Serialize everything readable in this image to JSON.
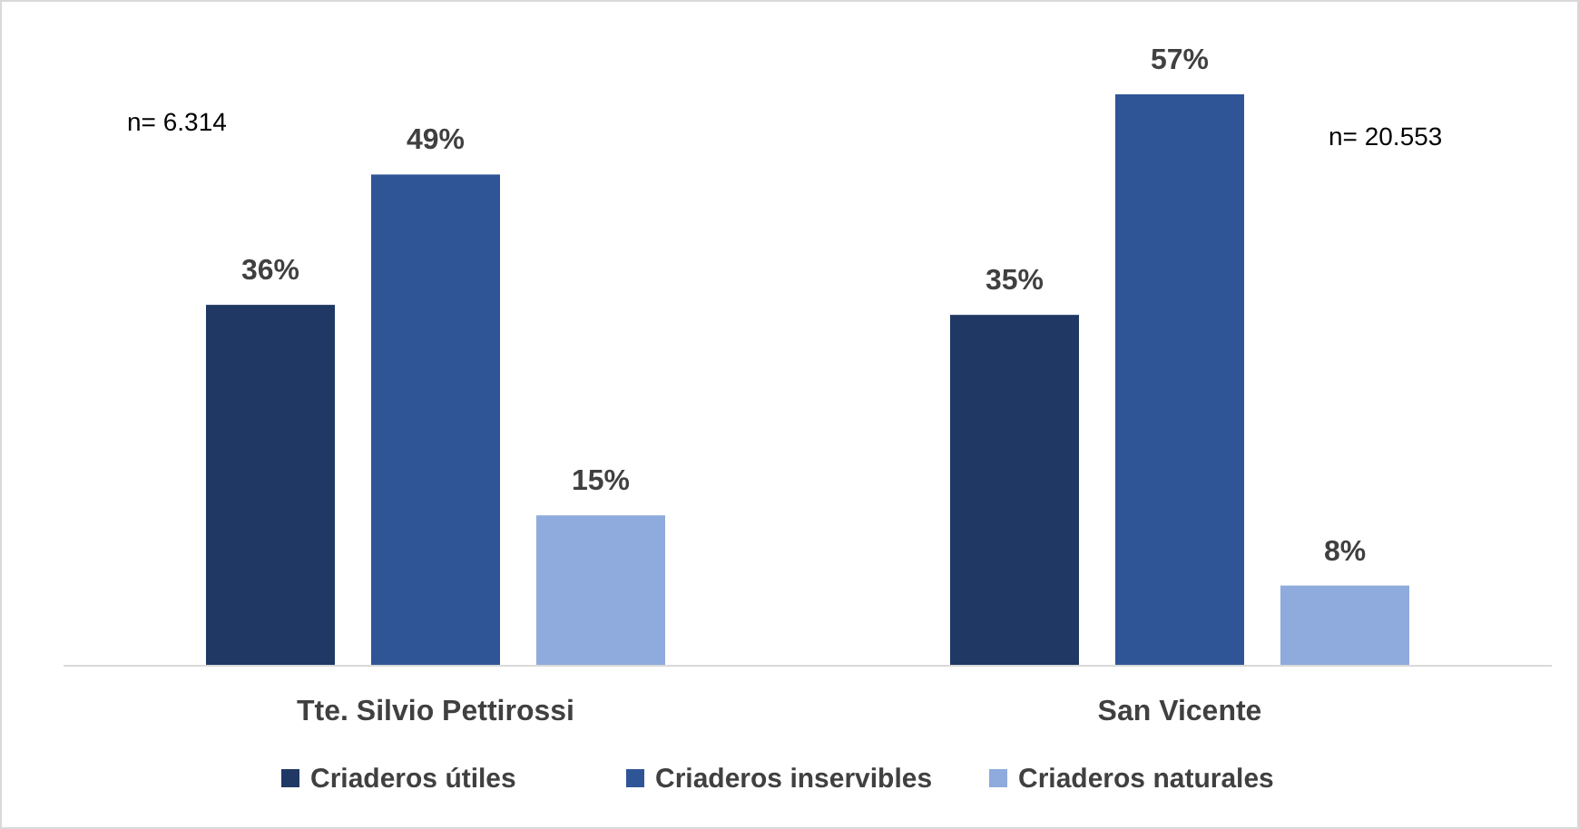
{
  "chart_data": {
    "type": "bar",
    "categories": [
      "Tte. Silvio Pettirossi",
      "San Vicente"
    ],
    "series": [
      {
        "name": "Criaderos útiles",
        "color": "#203864",
        "values": [
          36,
          35
        ],
        "value_labels": [
          "36%",
          "35%"
        ]
      },
      {
        "name": "Criaderos inservibles",
        "color": "#2f5597",
        "values": [
          49,
          57
        ],
        "value_labels": [
          "49%",
          "57%"
        ]
      },
      {
        "name": "Criaderos naturales",
        "color": "#8faadc",
        "values": [
          15,
          8
        ],
        "value_labels": [
          "15%",
          "8%"
        ]
      }
    ],
    "annotations": [
      "n= 6.314",
      "n= 20.553"
    ],
    "legend": "bottom"
  }
}
